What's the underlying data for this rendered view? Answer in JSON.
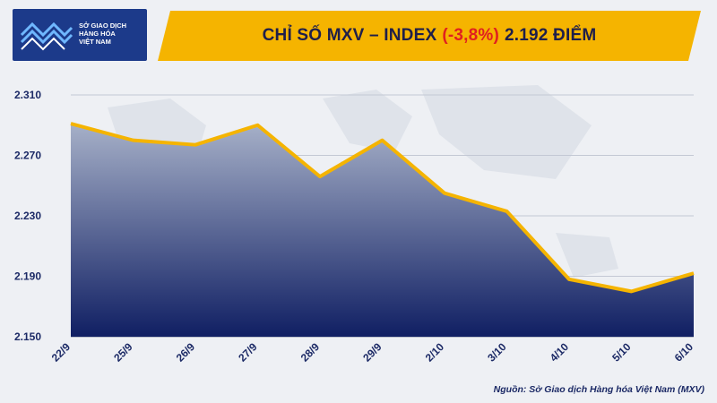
{
  "logo": {
    "line1": "SỞ GIAO DỊCH",
    "line2": "HÀNG HÓA",
    "line3": "VIỆT NAM"
  },
  "title": {
    "prefix": "CHỈ SỐ MXV – INDEX",
    "change": "(-3,8%)",
    "suffix": "2.192 ĐIỂM"
  },
  "source": "Nguồn: Sở Giao dịch Hàng hóa Việt Nam (MXV)",
  "colors": {
    "title_bar": "#f5b400",
    "line": "#f5b400",
    "area_top": "#a6b0c8",
    "area_bottom": "#101f63",
    "change_text": "#e02020",
    "axis_text": "#1c2a66"
  },
  "chart_data": {
    "type": "area",
    "categories": [
      "22/9",
      "25/9",
      "26/9",
      "27/9",
      "28/9",
      "29/9",
      "2/10",
      "3/10",
      "4/10",
      "5/10",
      "6/10"
    ],
    "series": [
      {
        "values": [
          2291,
          2280,
          2277,
          2290,
          2256,
          2280,
          2245,
          2233,
          2188,
          2180,
          2192
        ]
      }
    ],
    "yticks": [
      "2.150",
      "2.190",
      "2.230",
      "2.270",
      "2.310"
    ],
    "ytick_values": [
      2150,
      2190,
      2230,
      2270,
      2310
    ],
    "ylim": [
      2150,
      2310
    ],
    "grid": true,
    "legend": "none"
  }
}
